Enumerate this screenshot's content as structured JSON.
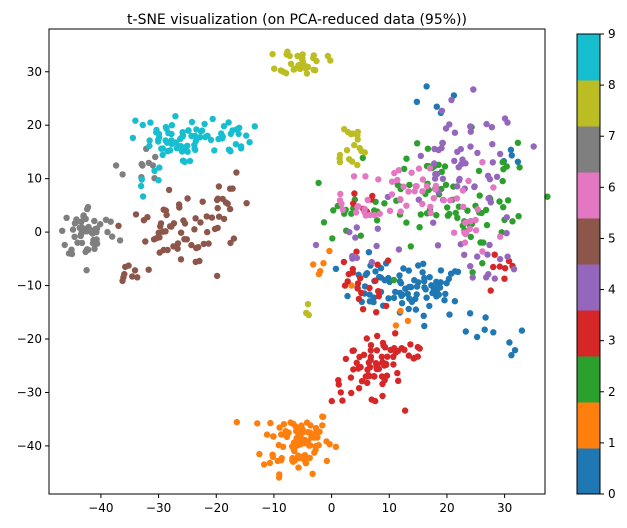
{
  "chart_data": {
    "type": "scatter",
    "title": "t-SNE visualization (on PCA-reduced data (95%))",
    "xlabel": "",
    "ylabel": "",
    "xlim": [
      -49,
      37
    ],
    "ylim": [
      -49,
      38
    ],
    "xticks": [
      -40,
      -30,
      -20,
      -10,
      0,
      10,
      20,
      30
    ],
    "yticks": [
      -40,
      -30,
      -20,
      -10,
      0,
      10,
      20,
      30
    ],
    "grid": false,
    "colorbar": {
      "label": "",
      "ticks": [
        "0",
        "1",
        "2",
        "3",
        "4",
        "5",
        "6",
        "7",
        "8",
        "9"
      ],
      "colors": [
        "#1f77b4",
        "#ff7f0e",
        "#2ca02c",
        "#d62728",
        "#9467bd",
        "#8c564b",
        "#e377c2",
        "#7f7f7f",
        "#bcbd22",
        "#17becf"
      ]
    },
    "clusters": [
      {
        "label": "0",
        "regions": [
          {
            "cx": 17,
            "cy": -11,
            "sx": 3,
            "sy": 2.5,
            "n": 45
          },
          {
            "cx": 9,
            "cy": -10,
            "sx": 4,
            "sy": 2.5,
            "n": 40
          },
          {
            "cx": 27,
            "cy": -21,
            "sx": 4,
            "sy": 3,
            "n": 10
          },
          {
            "cx": 20,
            "cy": 24,
            "sx": 3,
            "sy": 1.5,
            "n": 5
          },
          {
            "cx": 31,
            "cy": 14,
            "sx": 1,
            "sy": 1,
            "n": 4
          }
        ]
      },
      {
        "label": "1",
        "regions": [
          {
            "cx": -6,
            "cy": -39,
            "sx": 3,
            "sy": 3,
            "n": 90
          },
          {
            "cx": -2,
            "cy": -7,
            "sx": 2,
            "sy": 1.5,
            "n": 6
          },
          {
            "cx": 12,
            "cy": -17,
            "sx": 1,
            "sy": 1,
            "n": 3
          }
        ]
      },
      {
        "label": "2",
        "regions": [
          {
            "cx": 18,
            "cy": 8,
            "sx": 7,
            "sy": 5,
            "n": 60
          },
          {
            "cx": 26,
            "cy": 3,
            "sx": 4,
            "sy": 4,
            "n": 25
          },
          {
            "cx": 3,
            "cy": 2,
            "sx": 3,
            "sy": 1.5,
            "n": 10
          }
        ]
      },
      {
        "label": "3",
        "regions": [
          {
            "cx": 6,
            "cy": -27,
            "sx": 3,
            "sy": 2.5,
            "n": 45
          },
          {
            "cx": 11,
            "cy": -22,
            "sx": 3.5,
            "sy": 2.5,
            "n": 30
          },
          {
            "cx": 5,
            "cy": -10,
            "sx": 3,
            "sy": 3,
            "n": 20
          },
          {
            "cx": 29,
            "cy": -8,
            "sx": 1.5,
            "sy": 2,
            "n": 8
          },
          {
            "cx": 6,
            "cy": 5,
            "sx": 1.5,
            "sy": 1.5,
            "n": 6
          }
        ]
      },
      {
        "label": "4",
        "regions": [
          {
            "cx": 23,
            "cy": 12,
            "sx": 5,
            "sy": 6,
            "n": 55
          },
          {
            "cx": 27,
            "cy": -5,
            "sx": 3,
            "sy": 2.5,
            "n": 15
          },
          {
            "cx": 4,
            "cy": -2,
            "sx": 3,
            "sy": 2,
            "n": 10
          }
        ]
      },
      {
        "label": "5",
        "regions": [
          {
            "cx": -18,
            "cy": 4,
            "sx": 2.5,
            "sy": 3,
            "n": 22
          },
          {
            "cx": -30,
            "cy": 1,
            "sx": 3,
            "sy": 2,
            "n": 22
          },
          {
            "cx": -27,
            "cy": -4,
            "sx": 3,
            "sy": 2.5,
            "n": 15
          },
          {
            "cx": -35,
            "cy": -8,
            "sx": 1.5,
            "sy": 1,
            "n": 8
          },
          {
            "cx": -25,
            "cy": 5,
            "sx": 2,
            "sy": 2,
            "n": 10
          }
        ]
      },
      {
        "label": "6",
        "regions": [
          {
            "cx": 14,
            "cy": 7,
            "sx": 6,
            "sy": 3,
            "n": 40
          },
          {
            "cx": 24,
            "cy": 0,
            "sx": 3,
            "sy": 2,
            "n": 12
          },
          {
            "cx": 5,
            "cy": 4,
            "sx": 3,
            "sy": 1.5,
            "n": 12
          }
        ]
      },
      {
        "label": "7",
        "regions": [
          {
            "cx": -42,
            "cy": 0,
            "sx": 2.5,
            "sy": 2.5,
            "n": 55
          },
          {
            "cx": -33,
            "cy": 12,
            "sx": 1.5,
            "sy": 2,
            "n": 10
          }
        ]
      },
      {
        "label": "8",
        "regions": [
          {
            "cx": -5,
            "cy": 32,
            "sx": 2,
            "sy": 1.2,
            "n": 32
          },
          {
            "cx": 3,
            "cy": 16,
            "sx": 1.5,
            "sy": 2.5,
            "n": 18
          },
          {
            "cx": -4,
            "cy": -15,
            "sx": 0.6,
            "sy": 1.5,
            "n": 4
          }
        ]
      },
      {
        "label": "9",
        "regions": [
          {
            "cx": -29,
            "cy": 17,
            "sx": 3,
            "sy": 2,
            "n": 45
          },
          {
            "cx": -20,
            "cy": 18,
            "sx": 3,
            "sy": 1.8,
            "n": 35
          },
          {
            "cx": -32,
            "cy": 10,
            "sx": 1.5,
            "sy": 1.5,
            "n": 6
          }
        ]
      }
    ]
  }
}
